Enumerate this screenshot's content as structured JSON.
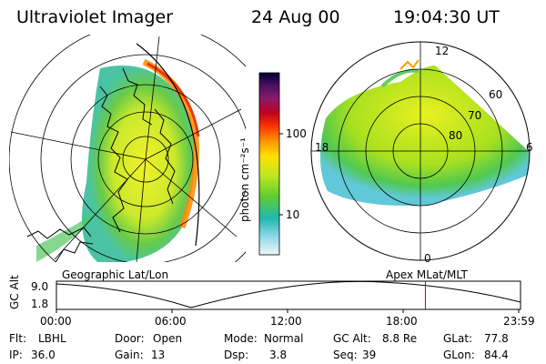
{
  "header": {
    "instrument": "Ultraviolet Imager",
    "date": "24 Aug 00",
    "time": "19:04:30 UT"
  },
  "left_panel": {
    "caption": "Geographic Lat/Lon"
  },
  "right_panel": {
    "caption": "Apex MLat/MLT",
    "mlt_labels": [
      "12",
      "18",
      "6",
      "0"
    ],
    "lat_labels": [
      "60",
      "70",
      "80"
    ]
  },
  "colorbar": {
    "unit": "photon cm⁻²s⁻¹",
    "ticks": [
      "100",
      "10"
    ],
    "colors": [
      "#000033",
      "#3a0050",
      "#7a1a6a",
      "#a8003a",
      "#d00000",
      "#ff3000",
      "#ff7000",
      "#ffb000",
      "#ffe000",
      "#e0f000",
      "#b0e000",
      "#70d000",
      "#30c060",
      "#20b0c0",
      "#80d0e0",
      "#e0f0f0"
    ]
  },
  "timeline": {
    "y_axis_label": "GC Alt",
    "y_ticks": [
      "9.0",
      "1.8"
    ],
    "x_ticks": [
      "00:00",
      "06:00",
      "12:00",
      "18:00",
      "23:59"
    ],
    "current_time_marker_fraction": 0.795,
    "marker_color": "#cc0000"
  },
  "status": {
    "row1": [
      {
        "label": "Flt:",
        "value": "LBHL"
      },
      {
        "label": "Door:",
        "value": "Open"
      },
      {
        "label": "Mode:",
        "value": "Normal"
      },
      {
        "label": "GC Alt:",
        "value": "8.8 Re"
      },
      {
        "label": "GLat:",
        "value": "77.8"
      }
    ],
    "row2": [
      {
        "label": "IP:",
        "value": "36.0"
      },
      {
        "label": "Gain:",
        "value": "13"
      },
      {
        "label": "Dsp:",
        "value": "3.8"
      },
      {
        "label": "Seq:",
        "value": "39"
      },
      {
        "label": "GLon:",
        "value": "84.4"
      }
    ]
  }
}
